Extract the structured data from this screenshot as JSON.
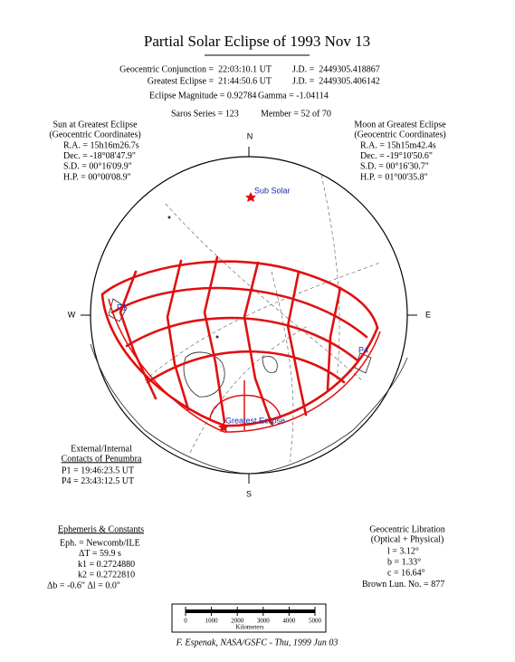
{
  "header": {
    "title": "Partial Solar Eclipse of 1993 Nov 13",
    "conjunction": "Geocentric Conjunction =  22:03:10.1 UT",
    "conjunction_jd": "J.D. =  2449305.418867",
    "greatest": "Greatest Eclipse =  21:44:50.6 UT",
    "greatest_jd": "J.D. =  2449305.406142",
    "magnitude": "Eclipse Magnitude = 0.92784",
    "gamma": "Gamma = -1.04114",
    "saros": "Saros Series = 123",
    "member": "Member = 52 of 70"
  },
  "sun": {
    "heading": "Sun at Greatest Eclipse",
    "subheading": "(Geocentric Coordinates)",
    "lines": [
      "R.A. =  15h16m26.7s",
      "Dec. = -18°08'47.9\"",
      "S.D. =  00°16'09.9\"",
      "H.P. =  00°00'08.9\""
    ]
  },
  "moon": {
    "heading": "Moon at Greatest Eclipse",
    "subheading": "(Geocentric Coordinates)",
    "lines": [
      "R.A. =  15h15m42.4s",
      "Dec. = -19°10'50.6\"",
      "S.D. =  00°16'30.7\"",
      "H.P. =  01°00'35.8\""
    ]
  },
  "globe": {
    "north": "N",
    "south": "S",
    "west": "W",
    "east": "E",
    "sub_solar": "Sub Solar",
    "p1": "P1",
    "p4": "P4",
    "greatest_eclipse": "Greatest Eclipse"
  },
  "contacts": {
    "heading": "External/Internal",
    "subheading": "Contacts of Penumbra",
    "lines": [
      "P1 = 19:46:23.5 UT",
      "P4 = 23:43:12.5 UT"
    ]
  },
  "ephemeris": {
    "heading": "Ephemeris & Constants",
    "lines": [
      "Eph. = Newcomb/ILE",
      "ΔT =      59.9 s",
      "k1 = 0.2724880",
      "k2 = 0.2722810",
      "Δb =  -0.6\"     Δl =   0.0\""
    ]
  },
  "libration": {
    "heading": "Geocentric Libration",
    "subheading": "(Optical + Physical)",
    "lines": [
      "l =    3.12°",
      "b =    1.33°",
      "c =  16.64°",
      "Brown Lun. No. =   877"
    ]
  },
  "scale": {
    "ticks": [
      0,
      1000,
      2000,
      3000,
      4000,
      5000
    ],
    "unit": "Kilometers"
  },
  "footer": "F. Espenak, NASA/GSFC - Thu, 1999 Jun 03"
}
